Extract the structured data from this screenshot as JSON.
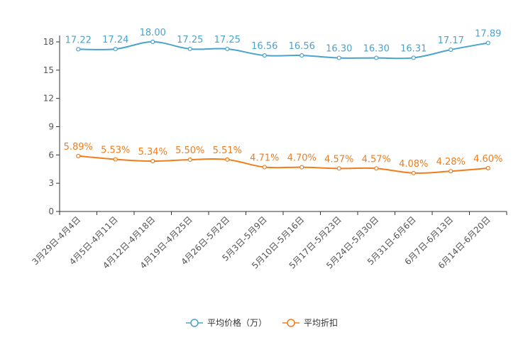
{
  "chart_data": {
    "type": "line",
    "categories": [
      "3月29日-4月4日",
      "4月5日-4月11日",
      "4月12日-4月18日",
      "4月19日-4月25日",
      "4月26日-5月2日",
      "5月3日-5月9日",
      "5月10日-5月16日",
      "5月17日-5月23日",
      "5月24日-5月30日",
      "5月31日-6月6日",
      "6月7日-6月13日",
      "6月14日-6月20日"
    ],
    "series": [
      {
        "name": "平均价格（万）",
        "color": "#4aa3cc",
        "values": [
          17.22,
          17.24,
          18.0,
          17.25,
          17.25,
          16.56,
          16.56,
          16.3,
          16.3,
          16.31,
          17.17,
          17.89
        ],
        "labels": [
          "17.22",
          "17.24",
          "18.00",
          "17.25",
          "17.25",
          "16.56",
          "16.56",
          "16.30",
          "16.30",
          "16.31",
          "17.17",
          "17.89"
        ]
      },
      {
        "name": "平均折扣",
        "color": "#f07c1c",
        "values": [
          5.89,
          5.53,
          5.34,
          5.5,
          5.51,
          4.71,
          4.7,
          4.57,
          4.57,
          4.08,
          4.28,
          4.6
        ],
        "labels": [
          "5.89%",
          "5.53%",
          "5.34%",
          "5.50%",
          "5.51%",
          "4.71%",
          "4.70%",
          "4.57%",
          "4.57%",
          "4.08%",
          "4.28%",
          "4.60%"
        ]
      }
    ],
    "yticks": [
      "0",
      "3",
      "6",
      "9",
      "12",
      "15",
      "18"
    ],
    "ylim": [
      0,
      18
    ],
    "title": "",
    "xlabel": "",
    "ylabel": "",
    "legend_position": "bottom-center"
  }
}
